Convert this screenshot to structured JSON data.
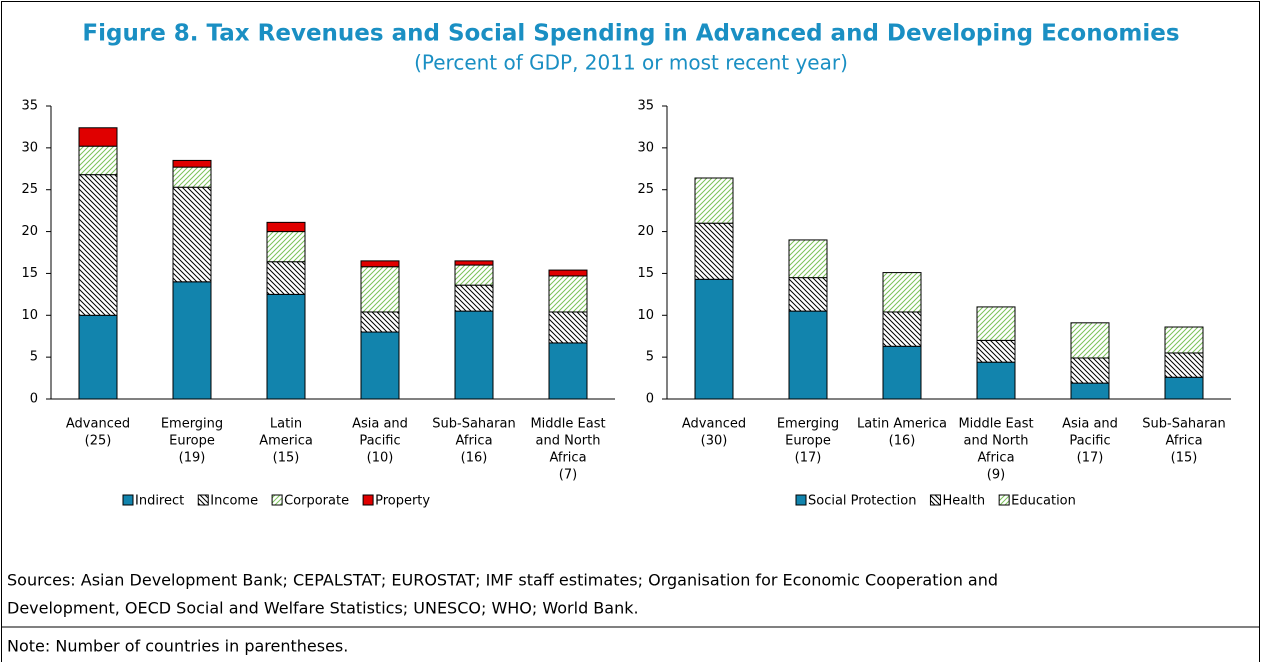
{
  "title": "Figure 8. Tax Revenues and Social Spending in Advanced and Developing Economies",
  "subtitle": "(Percent of GDP, 2011 or most recent year)",
  "chart_data": [
    {
      "type": "stacked_bar",
      "categories": [
        [
          "Advanced",
          "(25)"
        ],
        [
          "Emerging",
          "Europe",
          "(19)"
        ],
        [
          "Latin",
          "America",
          "(15)"
        ],
        [
          "Asia and",
          "Pacific",
          "(10)"
        ],
        [
          "Sub-Saharan",
          "Africa",
          "(16)"
        ],
        [
          "Middle East",
          "and North",
          "Africa",
          "(7)"
        ]
      ],
      "series": [
        {
          "name": "Indirect",
          "color": "#1284ad",
          "values": [
            10.0,
            14.0,
            12.5,
            8.0,
            10.5,
            6.7
          ]
        },
        {
          "name": "Income",
          "color": "#000000",
          "hatch": "back",
          "values": [
            16.8,
            11.3,
            3.9,
            2.4,
            3.1,
            3.7
          ]
        },
        {
          "name": "Corporate",
          "color": "#7cc25a",
          "hatch": "forward",
          "values": [
            3.4,
            2.4,
            3.6,
            5.4,
            2.4,
            4.3
          ]
        },
        {
          "name": "Property",
          "color": "#e00000",
          "values": [
            2.2,
            0.8,
            1.1,
            0.7,
            0.5,
            0.7
          ]
        }
      ],
      "ylim": [
        0,
        35
      ],
      "yticks": [
        0,
        5,
        10,
        15,
        20,
        25,
        30,
        35
      ],
      "legend": "bottom"
    },
    {
      "type": "stacked_bar",
      "categories": [
        [
          "Advanced",
          "(30)"
        ],
        [
          "Emerging",
          "Europe",
          "(17)"
        ],
        [
          "Latin America",
          "(16)"
        ],
        [
          "Middle East",
          "and North",
          "Africa",
          "(9)"
        ],
        [
          "Asia and",
          "Pacific",
          "(17)"
        ],
        [
          "Sub-Saharan",
          "Africa",
          "(15)"
        ]
      ],
      "series": [
        {
          "name": "Social Protection",
          "color": "#1284ad",
          "values": [
            14.3,
            10.5,
            6.3,
            4.4,
            1.9,
            2.6
          ]
        },
        {
          "name": "Health",
          "color": "#000000",
          "hatch": "back",
          "values": [
            6.7,
            4.0,
            4.1,
            2.6,
            3.0,
            2.9
          ]
        },
        {
          "name": "Education",
          "color": "#7cc25a",
          "hatch": "forward",
          "values": [
            5.4,
            4.5,
            4.7,
            4.0,
            4.2,
            3.1
          ]
        }
      ],
      "ylim": [
        0,
        35
      ],
      "yticks": [
        0,
        5,
        10,
        15,
        20,
        25,
        30,
        35
      ],
      "legend": "bottom"
    }
  ],
  "sources": [
    "Sources: Asian Development Bank; CEPALSTAT; EUROSTAT; IMF staff estimates; Organisation for Economic Cooperation and",
    "Development, OECD Social and Welfare Statistics; UNESCO; WHO; World Bank."
  ],
  "note": "Note: Number of countries in parentheses."
}
